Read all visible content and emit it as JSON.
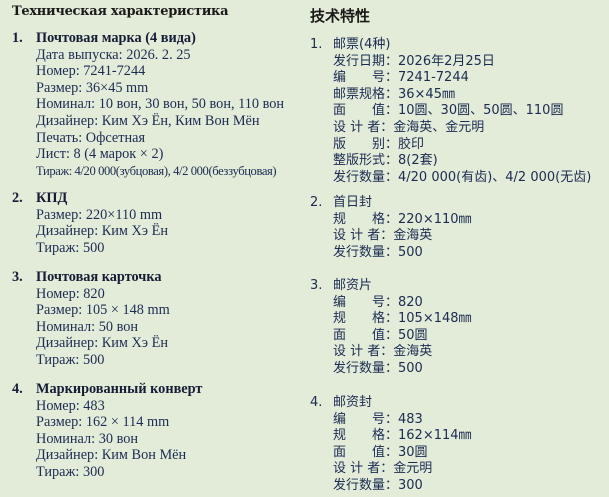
{
  "ru": {
    "title": "Техническая характеристика",
    "sections": [
      {
        "num": "1.",
        "head": "Почтовая марка (4 вида)",
        "lines": [
          "Дата выпуска: 2026. 2. 25",
          "Номер: 7241-7244",
          "Размер: 36×45 mm",
          "Номинал: 10 вон, 30 вон, 50 вон, 110 вон",
          "Дизайнер: Ким Хэ Ён, Ким Вон Мён",
          "Печать: Офсетная",
          "Лист: 8 (4 марок × 2)",
          "Тираж: 4/20 000(зубцовая), 4/2 000(беззубцовая)"
        ]
      },
      {
        "num": "2.",
        "head": "КПД",
        "lines": [
          "Размер: 220×110 mm",
          "Дизайнер: Ким Хэ Ён",
          "Тираж: 500"
        ]
      },
      {
        "num": "3.",
        "head": "Почтовая карточка",
        "lines": [
          "Номер: 820",
          "Размер: 105 × 148 mm",
          "Номинал: 50 вон",
          "Дизайнер: Ким Хэ Ён",
          "Тираж: 500"
        ]
      },
      {
        "num": "4.",
        "head": "Маркированный конверт",
        "lines": [
          "Номер: 483",
          "Размер: 162 × 114 mm",
          "Номинал: 30 вон",
          "Дизайнер: Ким Вон Мён",
          "Тираж: 300"
        ]
      }
    ]
  },
  "zh": {
    "title": "技术特性",
    "sections": [
      {
        "num": "1.",
        "head": "邮票(4种)",
        "lines": [
          "发行日期：2026年2月25日",
          "编　　号：7241-7244",
          "邮票规格：36×45㎜",
          "面　　值：10圆、30圆、50圆、110圆",
          "设 计 者：金海英、金元明",
          "版　　别：胶印",
          "整版形式：8(2套)",
          "发行数量：4/20 000(有齿)、4/2 000(无齿)"
        ]
      },
      {
        "num": "2.",
        "head": "首日封",
        "lines": [
          "规　　格：220×110㎜",
          "设 计 者：金海英",
          "发行数量：500"
        ]
      },
      {
        "num": "3.",
        "head": "邮资片",
        "lines": [
          "编　　号：820",
          "规　　格：105×148㎜",
          "面　　值：50圆",
          "设 计 者：金海英",
          "发行数量：500"
        ]
      },
      {
        "num": "4.",
        "head": "邮资封",
        "lines": [
          "编　　号：483",
          "规　　格：162×114㎜",
          "面　　值：30圆",
          "设 计 者：金元明",
          "发行数量：300"
        ]
      }
    ]
  }
}
